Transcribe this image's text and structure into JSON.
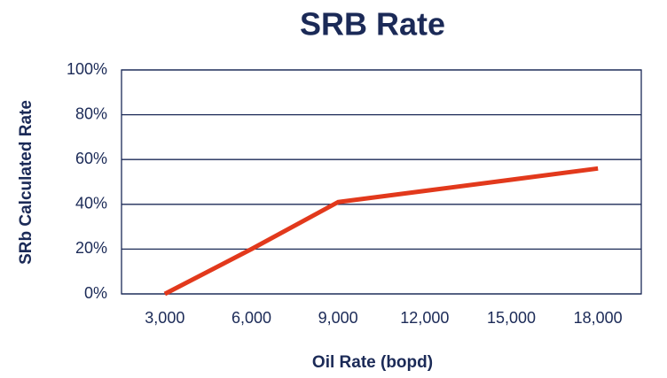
{
  "chart_data": {
    "type": "line",
    "title": "SRB Rate",
    "x_label": "Oil Rate (bopd)",
    "y_label": "SRb Calculated Rate",
    "categories": [
      "3,000",
      "6,000",
      "9,000",
      "12,000",
      "15,000",
      "18,000"
    ],
    "series": [
      {
        "name": "SRB Rate",
        "color": "#e2391c",
        "values": [
          0,
          20,
          41,
          46,
          51,
          56
        ]
      }
    ],
    "ylim": [
      0,
      100
    ],
    "yticks": [
      {
        "value": 0,
        "label": "0%"
      },
      {
        "value": 20,
        "label": "20%"
      },
      {
        "value": 40,
        "label": "40%"
      },
      {
        "value": 60,
        "label": "60%"
      },
      {
        "value": 80,
        "label": "80%"
      },
      {
        "value": 100,
        "label": "100%"
      }
    ],
    "grid": true
  }
}
